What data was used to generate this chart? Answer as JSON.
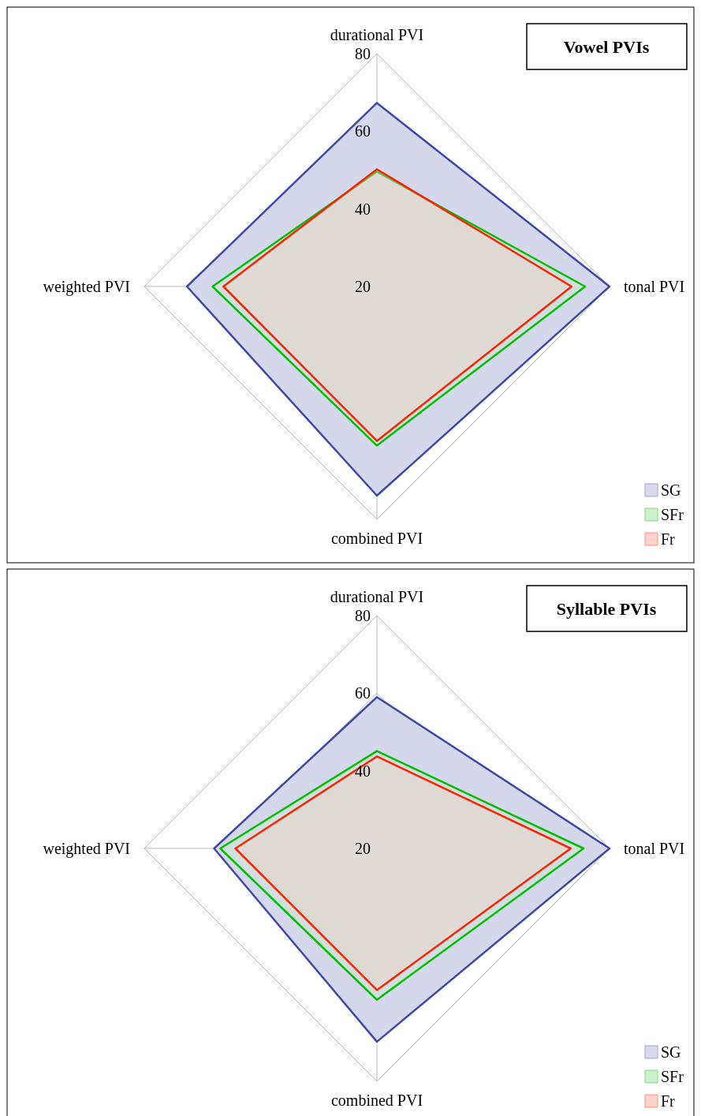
{
  "chart_data": [
    {
      "type": "radar",
      "title": "Vowel PVIs",
      "categories": [
        "durational PVI",
        "tonal PVI",
        "combined PVI",
        "weighted PVI"
      ],
      "ylim": [
        20,
        80
      ],
      "yticks": [
        20,
        40,
        60,
        80
      ],
      "grid": true,
      "legend": "bottom right",
      "series": [
        {
          "name": "SG",
          "color": "#3f48a8",
          "values": [
            67.3,
            80,
            73.9,
            69
          ]
        },
        {
          "name": "SFr",
          "color": "#00c000",
          "values": [
            49.6,
            73.7,
            61,
            62.4
          ]
        },
        {
          "name": "Fr",
          "color": "#ff2000",
          "values": [
            50.2,
            70.2,
            59.8,
            59.6
          ]
        }
      ]
    },
    {
      "type": "radar",
      "title": "Syllable PVIs",
      "categories": [
        "durational PVI",
        "tonal PVI",
        "combined PVI",
        "weighted PVI"
      ],
      "ylim": [
        20,
        80
      ],
      "yticks": [
        20,
        40,
        60,
        80
      ],
      "grid": true,
      "legend": "bottom right",
      "series": [
        {
          "name": "SG",
          "color": "#3f48a8",
          "values": [
            59,
            80,
            69.8,
            62
          ]
        },
        {
          "name": "SFr",
          "color": "#00c000",
          "values": [
            45.1,
            73.3,
            59,
            60.4
          ]
        },
        {
          "name": "Fr",
          "color": "#ff2000",
          "values": [
            43.7,
            70,
            56.5,
            56.5
          ]
        }
      ]
    }
  ]
}
